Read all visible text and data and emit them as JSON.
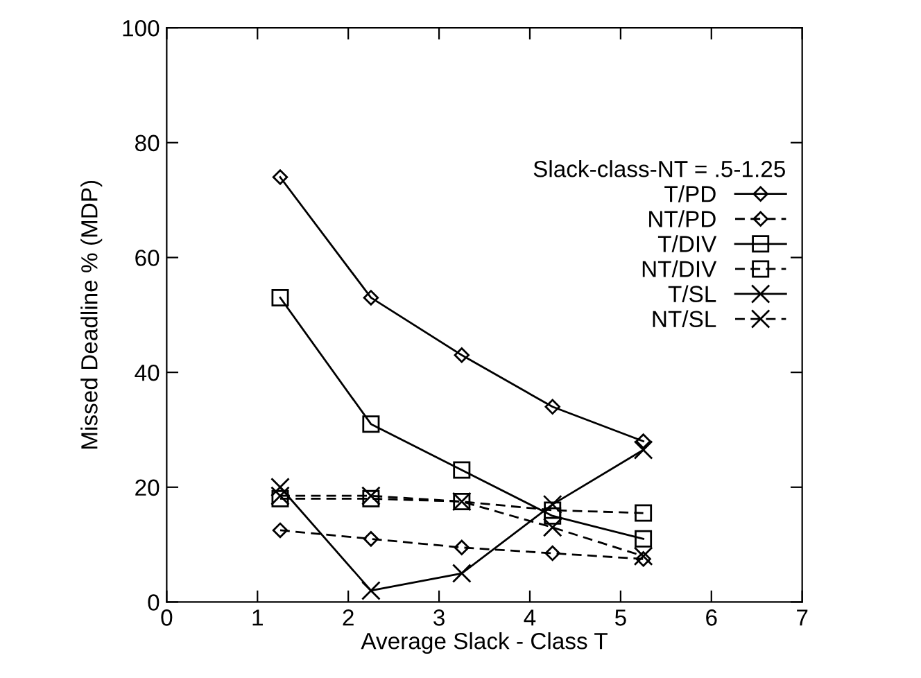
{
  "chart_data": {
    "type": "line",
    "xlabel": "Average Slack - Class T",
    "ylabel": "Missed Deadline % (MDP)",
    "legend_title": "Slack-class-NT = .5-1.25",
    "legend": "right",
    "grid": false,
    "xlim": [
      0,
      7
    ],
    "xticks": [
      0,
      1,
      2,
      3,
      4,
      5,
      6,
      7
    ],
    "ylim": [
      0,
      100
    ],
    "yticks": [
      0,
      20,
      40,
      60,
      80,
      100
    ],
    "x": [
      1.25,
      2.25,
      3.25,
      4.25,
      5.25
    ],
    "series": [
      {
        "name": "T/PD",
        "color": "#000000",
        "marker": "diamond",
        "line_style": "solid",
        "values": [
          74,
          53,
          43,
          34,
          28
        ]
      },
      {
        "name": "NT/PD",
        "color": "#000000",
        "marker": "diamond",
        "line_style": "dashed",
        "values": [
          12.5,
          11,
          9.5,
          8.5,
          7.5
        ]
      },
      {
        "name": "T/DIV",
        "color": "#000000",
        "marker": "square",
        "line_style": "solid",
        "values": [
          53,
          31,
          23,
          15,
          11
        ]
      },
      {
        "name": "NT/DIV",
        "color": "#000000",
        "marker": "square",
        "line_style": "dashed",
        "values": [
          18,
          18,
          17.5,
          16,
          15.5
        ]
      },
      {
        "name": "T/SL",
        "color": "#000000",
        "marker": "cross",
        "line_style": "solid",
        "values": [
          20,
          2,
          5,
          17,
          26.5
        ]
      },
      {
        "name": "NT/SL",
        "color": "#000000",
        "marker": "cross",
        "line_style": "dashed",
        "values": [
          18.5,
          18.5,
          17.5,
          13,
          8
        ]
      }
    ]
  }
}
